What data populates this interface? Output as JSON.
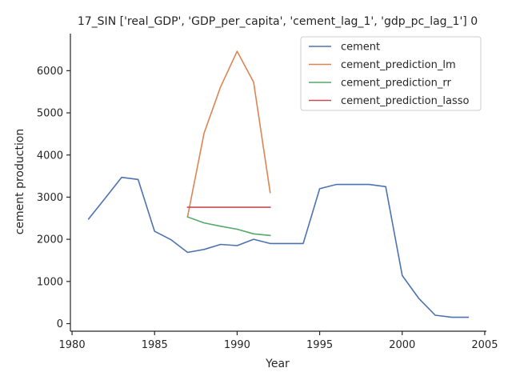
{
  "chart_data": {
    "type": "line",
    "title": "17_SIN ['real_GDP', 'GDP_per_capita', 'cement_lag_1', 'gdp_pc_lag_1'] 0",
    "xlabel": "Year",
    "ylabel": "cement production",
    "xlim": [
      1979.9,
      2005.1
    ],
    "ylim": [
      -180,
      6880
    ],
    "xticks": [
      1980,
      1985,
      1990,
      1995,
      2000,
      2005
    ],
    "yticks": [
      0,
      1000,
      2000,
      3000,
      4000,
      5000,
      6000
    ],
    "grid": false,
    "legend_position": "top-right",
    "series": [
      {
        "name": "cement",
        "color": "#4c72b0",
        "x": [
          1981,
          1982,
          1983,
          1984,
          1985,
          1986,
          1987,
          1988,
          1989,
          1990,
          1991,
          1992,
          1993,
          1994,
          1995,
          1996,
          1997,
          1998,
          1999,
          2000,
          2001,
          2002,
          2003,
          2004
        ],
        "y": [
          2480,
          2970,
          3470,
          3420,
          2190,
          1990,
          1690,
          1760,
          1880,
          1850,
          2000,
          1900,
          1900,
          1900,
          3200,
          3300,
          3300,
          3300,
          3250,
          1140,
          600,
          200,
          150,
          150
        ]
      },
      {
        "name": "cement_prediction_lm",
        "color": "#dd8452",
        "x": [
          1987,
          1988,
          1989,
          1990,
          1991,
          1992
        ],
        "y": [
          2540,
          4520,
          5620,
          6460,
          5730,
          3110
        ]
      },
      {
        "name": "cement_prediction_rr",
        "color": "#55a868",
        "x": [
          1987,
          1988,
          1989,
          1990,
          1991,
          1992
        ],
        "y": [
          2530,
          2390,
          2310,
          2240,
          2130,
          2090
        ]
      },
      {
        "name": "cement_prediction_lasso",
        "color": "#c44e52",
        "x": [
          1987,
          1988,
          1989,
          1990,
          1991,
          1992
        ],
        "y": [
          2760,
          2760,
          2760,
          2760,
          2760,
          2760
        ]
      }
    ]
  }
}
